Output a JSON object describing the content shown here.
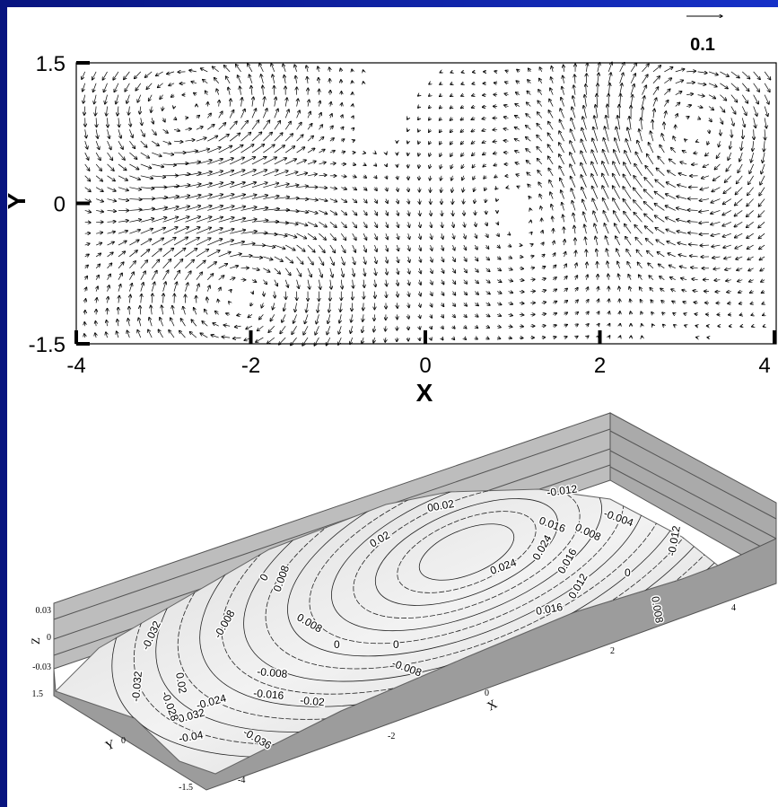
{
  "vector_plot": {
    "scale_label": "0.1",
    "x_label": "X",
    "y_label": "Y",
    "x_ticks": [
      "-4",
      "-2",
      "0",
      "2",
      "4"
    ],
    "y_ticks": [
      "1.5",
      "0",
      "-1.5"
    ]
  },
  "surface_plot": {
    "z_label": "Z",
    "z_ticks": [
      "0.03",
      "0",
      "-0.03"
    ],
    "y_label": "Y",
    "y_ticks": [
      "1.5",
      "0",
      "-1.5"
    ],
    "x_label": "X",
    "x_ticks": [
      "-4",
      "-2",
      "0",
      "2",
      "4"
    ],
    "contour_labels": [
      "0.02",
      "00.02",
      "-0.012",
      "-0.004",
      "0.016",
      "0.008",
      "0.024",
      "0.024",
      "0.016",
      "0.012",
      "0",
      "0.008",
      "-0.012",
      "0.016",
      "0",
      "0.008",
      "-0.008",
      "0.008",
      "0",
      "0",
      "-0.008",
      "-0.008",
      "-0.016",
      "-0.02",
      "-0.024",
      "-0.032",
      "-0.036",
      "-0.04",
      "-0.032",
      "-0.028",
      "0.02",
      "-0.032"
    ]
  }
}
